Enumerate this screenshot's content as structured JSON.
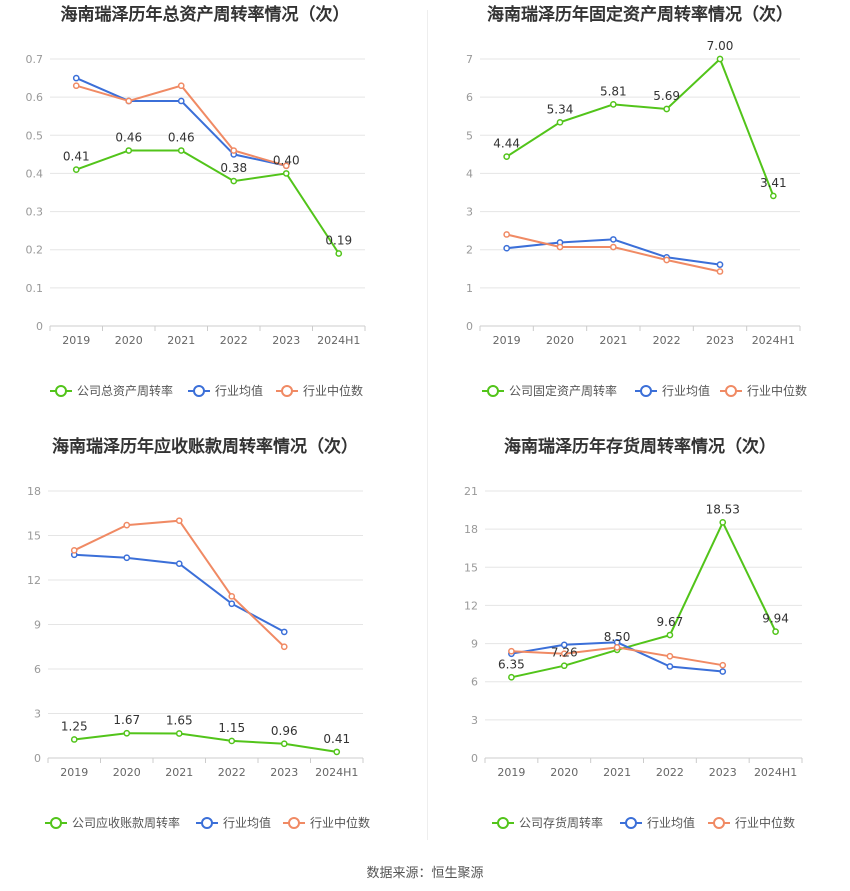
{
  "colors": {
    "company": "#52c41a",
    "avg": "#3b6fd8",
    "median": "#f08a64",
    "grid": "#e5e5e5",
    "axis": "#999999"
  },
  "legend_labels": {
    "avg": "行业均值",
    "median": "行业中位数"
  },
  "source_text": "数据来源：恒生聚源",
  "chart_data": [
    {
      "type": "line",
      "title": "海南瑞泽历年总资产周转率情况（次）",
      "categories": [
        "2019",
        "2020",
        "2021",
        "2022",
        "2023",
        "2024H1"
      ],
      "yticks": [
        "0",
        "0.1",
        "0.2",
        "0.3",
        "0.4",
        "0.5",
        "0.6",
        "0.7"
      ],
      "ylim": [
        0,
        0.7
      ],
      "series": [
        {
          "name": "公司总资产周转率",
          "values": [
            0.41,
            0.46,
            0.46,
            0.38,
            0.4,
            0.19
          ],
          "labels": [
            "0.41",
            "0.46",
            "0.46",
            "0.38",
            "0.40",
            "0.19"
          ]
        },
        {
          "name": "行业均值",
          "values": [
            0.65,
            0.59,
            0.59,
            0.45,
            0.42,
            null
          ]
        },
        {
          "name": "行业中位数",
          "values": [
            0.63,
            0.59,
            0.63,
            0.46,
            0.42,
            null
          ]
        }
      ]
    },
    {
      "type": "line",
      "title": "海南瑞泽历年固定资产周转率情况（次）",
      "categories": [
        "2019",
        "2020",
        "2021",
        "2022",
        "2023",
        "2024H1"
      ],
      "yticks": [
        "0",
        "1",
        "2",
        "3",
        "4",
        "5",
        "6",
        "7"
      ],
      "ylim": [
        0,
        7
      ],
      "series": [
        {
          "name": "公司固定资产周转率",
          "values": [
            4.44,
            5.34,
            5.81,
            5.69,
            7.0,
            3.41
          ],
          "labels": [
            "4.44",
            "5.34",
            "5.81",
            "5.69",
            "7.00",
            "3.41"
          ]
        },
        {
          "name": "行业均值",
          "values": [
            2.04,
            2.19,
            2.27,
            1.8,
            1.61,
            null
          ]
        },
        {
          "name": "行业中位数",
          "values": [
            2.4,
            2.07,
            2.07,
            1.73,
            1.43,
            null
          ]
        }
      ]
    },
    {
      "type": "line",
      "title": "海南瑞泽历年应收账款周转率情况（次）",
      "categories": [
        "2019",
        "2020",
        "2021",
        "2022",
        "2023",
        "2024H1"
      ],
      "yticks": [
        "0",
        "3",
        "6",
        "9",
        "12",
        "15",
        "18"
      ],
      "ylim": [
        0,
        18
      ],
      "series": [
        {
          "name": "公司应收账款周转率",
          "values": [
            1.25,
            1.67,
            1.65,
            1.15,
            0.96,
            0.41
          ],
          "labels": [
            "1.25",
            "1.67",
            "1.65",
            "1.15",
            "0.96",
            "0.41"
          ]
        },
        {
          "name": "行业均值",
          "values": [
            13.7,
            13.5,
            13.1,
            10.4,
            8.5,
            null
          ]
        },
        {
          "name": "行业中位数",
          "values": [
            14.0,
            15.7,
            16.0,
            10.9,
            7.5,
            null
          ]
        }
      ]
    },
    {
      "type": "line",
      "title": "海南瑞泽历年存货周转率情况（次）",
      "categories": [
        "2019",
        "2020",
        "2021",
        "2022",
        "2023",
        "2024H1"
      ],
      "yticks": [
        "0",
        "3",
        "6",
        "9",
        "12",
        "15",
        "18",
        "21"
      ],
      "ylim": [
        0,
        21
      ],
      "series": [
        {
          "name": "公司存货周转率",
          "values": [
            6.35,
            7.26,
            8.5,
            9.67,
            18.53,
            9.94
          ],
          "labels": [
            "6.35",
            "7.26",
            "8.50",
            "9.67",
            "18.53",
            "9.94"
          ]
        },
        {
          "name": "行业均值",
          "values": [
            8.2,
            8.9,
            9.1,
            7.2,
            6.8,
            null
          ]
        },
        {
          "name": "行业中位数",
          "values": [
            8.4,
            8.2,
            8.7,
            8.0,
            7.3,
            null
          ]
        }
      ]
    }
  ]
}
